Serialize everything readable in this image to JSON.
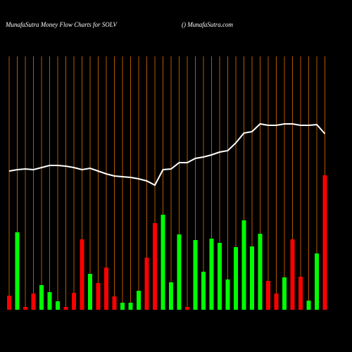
{
  "chart_data": {
    "type": "bar",
    "title": "MunafaSutra  Money Flow  Charts for SOLV",
    "subtitle": "() MunafaSutra.com",
    "ylim": [
      0,
      360
    ],
    "grid_color": "#b35900",
    "line_color": "#ffffff",
    "values": [
      20,
      110,
      4,
      23,
      35,
      25,
      12,
      4,
      24,
      100,
      51,
      38,
      60,
      19,
      10,
      10,
      27,
      74,
      123,
      135,
      39,
      107,
      4,
      99,
      54,
      101,
      95,
      43,
      89,
      127,
      90,
      108,
      41,
      23,
      46,
      100,
      47,
      13,
      80,
      191
    ],
    "colors": [
      "#ff0000",
      "#00ff00",
      "#ff0000",
      "#ff0000",
      "#00ff00",
      "#00ff00",
      "#00ff00",
      "#ff0000",
      "#ff0000",
      "#ff0000",
      "#00ff00",
      "#ff0000",
      "#ff0000",
      "#ff0000",
      "#00ff00",
      "#00ff00",
      "#00ff00",
      "#ff0000",
      "#ff0000",
      "#00ff00",
      "#00ff00",
      "#00ff00",
      "#ff0000",
      "#00ff00",
      "#00ff00",
      "#00ff00",
      "#00ff00",
      "#00ff00",
      "#00ff00",
      "#00ff00",
      "#00ff00",
      "#00ff00",
      "#ff0000",
      "#ff0000",
      "#00ff00",
      "#ff0000",
      "#ff0000",
      "#00ff00",
      "#00ff00",
      "#ff0000"
    ],
    "line_values": [
      197,
      199,
      200,
      199,
      202,
      205,
      205,
      204,
      202,
      199,
      201,
      197,
      193,
      190,
      189,
      188,
      186,
      183,
      177,
      199,
      200,
      209,
      209,
      215,
      217,
      220,
      224,
      226,
      237,
      251,
      253,
      264,
      262,
      262,
      264,
      264,
      262,
      262,
      263,
      250
    ]
  }
}
